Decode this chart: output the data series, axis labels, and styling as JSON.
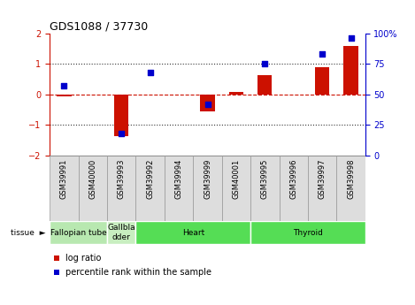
{
  "title": "GDS1088 / 37730",
  "samples": [
    "GSM39991",
    "GSM40000",
    "GSM39993",
    "GSM39992",
    "GSM39994",
    "GSM39999",
    "GSM40001",
    "GSM39995",
    "GSM39996",
    "GSM39997",
    "GSM39998"
  ],
  "log_ratio": [
    -0.05,
    0.0,
    -1.35,
    0.0,
    0.0,
    -0.55,
    0.08,
    0.65,
    0.0,
    0.9,
    1.6
  ],
  "pct_rank": [
    57,
    0,
    18,
    68,
    0,
    42,
    0,
    75,
    0,
    83,
    96
  ],
  "tissues": [
    {
      "label": "Fallopian tube",
      "start": 0,
      "end": 2,
      "color": "#b8e8b0"
    },
    {
      "label": "Gallbla\ndder",
      "start": 2,
      "end": 3,
      "color": "#c8eec0"
    },
    {
      "label": "Heart",
      "start": 3,
      "end": 7,
      "color": "#55dd55"
    },
    {
      "label": "Thyroid",
      "start": 7,
      "end": 11,
      "color": "#55dd55"
    }
  ],
  "ylim_left": [
    -2,
    2
  ],
  "ylim_right": [
    0,
    100
  ],
  "yticks_left": [
    -2,
    -1,
    0,
    1,
    2
  ],
  "yticks_right": [
    0,
    25,
    50,
    75,
    100
  ],
  "bar_color": "#cc1100",
  "dot_color": "#0000cc",
  "zero_line_color": "#cc1100",
  "grid_color": "#333333",
  "bg_color": "#ffffff",
  "legend_square_red": "#cc1100",
  "legend_square_blue": "#0000cc",
  "xtick_bg": "#dddddd",
  "xtick_border": "#999999"
}
